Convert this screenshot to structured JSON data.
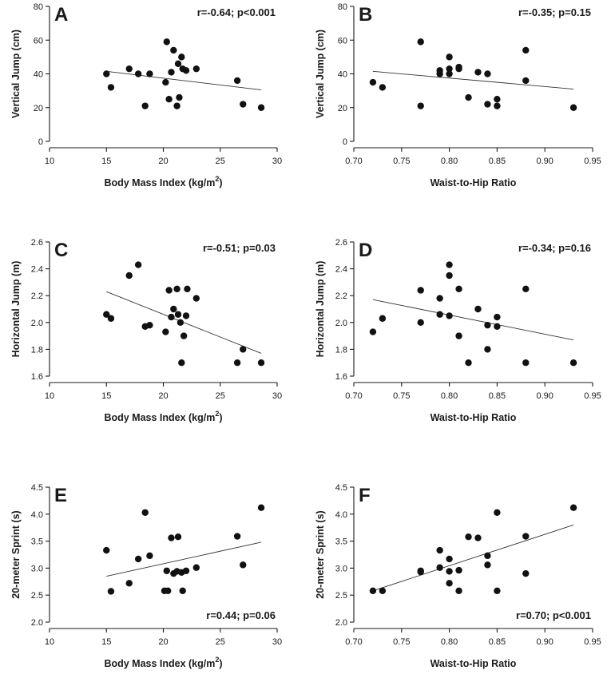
{
  "chart_data": [
    {
      "type": "scatter",
      "letter": "A",
      "stat": "r=-0.64;  p<0.001",
      "xlabel": "Body Mass Index (kg/m",
      "xlabel_sup": "2",
      "xlabel_end": ")",
      "ylabel": "Vertical Jump (cm)",
      "xlim": [
        10,
        30
      ],
      "ylim": [
        0,
        80
      ],
      "xticks": [
        "10",
        "15",
        "20",
        "25",
        "30"
      ],
      "yticks": [
        "0",
        "20",
        "40",
        "60",
        "80"
      ],
      "fit": [
        [
          15,
          41.5
        ],
        [
          28.6,
          30.5
        ]
      ],
      "points": [
        [
          15.0,
          40
        ],
        [
          15.4,
          32
        ],
        [
          17.0,
          43
        ],
        [
          17.8,
          40
        ],
        [
          18.4,
          21
        ],
        [
          18.8,
          40
        ],
        [
          20.2,
          35
        ],
        [
          20.3,
          59
        ],
        [
          20.5,
          25
        ],
        [
          20.7,
          41
        ],
        [
          20.9,
          54
        ],
        [
          21.2,
          21
        ],
        [
          21.3,
          46
        ],
        [
          21.4,
          26
        ],
        [
          21.6,
          50
        ],
        [
          21.7,
          43
        ],
        [
          22.0,
          42
        ],
        [
          22.9,
          43
        ],
        [
          26.5,
          36
        ],
        [
          27.0,
          22
        ],
        [
          28.6,
          20
        ]
      ]
    },
    {
      "type": "scatter",
      "letter": "B",
      "stat": "r=-0.35;  p=0.15",
      "xlabel": "Waist-to-Hip Ratio",
      "xlabel_sup": "",
      "xlabel_end": "",
      "ylabel": "Vertical Jump (cm)",
      "xlim": [
        0.7,
        0.95
      ],
      "ylim": [
        0,
        80
      ],
      "xticks": [
        "0.70",
        "0.75",
        "0.80",
        "0.85",
        "0.90",
        "0.95"
      ],
      "yticks": [
        "0",
        "20",
        "40",
        "60",
        "80"
      ],
      "fit": [
        [
          0.72,
          41.5
        ],
        [
          0.93,
          31
        ]
      ],
      "points": [
        [
          0.72,
          35
        ],
        [
          0.73,
          32
        ],
        [
          0.77,
          59
        ],
        [
          0.77,
          21
        ],
        [
          0.79,
          40
        ],
        [
          0.79,
          42
        ],
        [
          0.8,
          50
        ],
        [
          0.8,
          43
        ],
        [
          0.8,
          40
        ],
        [
          0.81,
          44
        ],
        [
          0.81,
          43
        ],
        [
          0.82,
          26
        ],
        [
          0.83,
          41
        ],
        [
          0.84,
          40
        ],
        [
          0.84,
          22
        ],
        [
          0.85,
          25
        ],
        [
          0.85,
          21
        ],
        [
          0.88,
          54
        ],
        [
          0.88,
          36
        ],
        [
          0.93,
          20
        ]
      ]
    },
    {
      "type": "scatter",
      "letter": "C",
      "stat": "r=-0.51;  p=0.03",
      "xlabel": "Body Mass Index (kg/m",
      "xlabel_sup": "2",
      "xlabel_end": ")",
      "ylabel": "Horizontal Jump (m)",
      "xlim": [
        10,
        30
      ],
      "ylim": [
        1.6,
        2.6
      ],
      "xticks": [
        "10",
        "15",
        "20",
        "25",
        "30"
      ],
      "yticks": [
        "1.6",
        "1.8",
        "2.0",
        "2.2",
        "2.4",
        "2.6"
      ],
      "fit": [
        [
          15,
          2.23
        ],
        [
          28.6,
          1.77
        ]
      ],
      "points": [
        [
          15.0,
          2.06
        ],
        [
          15.4,
          2.03
        ],
        [
          17.0,
          2.35
        ],
        [
          17.8,
          2.43
        ],
        [
          18.4,
          1.97
        ],
        [
          18.8,
          1.98
        ],
        [
          20.2,
          1.93
        ],
        [
          20.5,
          2.24
        ],
        [
          20.7,
          2.04
        ],
        [
          20.9,
          2.1
        ],
        [
          21.2,
          2.25
        ],
        [
          21.3,
          2.06
        ],
        [
          21.5,
          2.0
        ],
        [
          21.6,
          1.7
        ],
        [
          21.8,
          1.9
        ],
        [
          22.0,
          2.05
        ],
        [
          22.1,
          2.25
        ],
        [
          22.9,
          2.18
        ],
        [
          26.5,
          1.7
        ],
        [
          27.0,
          1.8
        ],
        [
          28.6,
          1.7
        ]
      ]
    },
    {
      "type": "scatter",
      "letter": "D",
      "stat": "r=-0.34;  p=0.16",
      "xlabel": "Waist-to-Hip Ratio",
      "xlabel_sup": "",
      "xlabel_end": "",
      "ylabel": "Horizontal Jump (m)",
      "xlim": [
        0.7,
        0.95
      ],
      "ylim": [
        1.6,
        2.6
      ],
      "xticks": [
        "0.70",
        "0.75",
        "0.80",
        "0.85",
        "0.90",
        "0.95"
      ],
      "yticks": [
        "1.6",
        "1.8",
        "2.0",
        "2.2",
        "2.4",
        "2.6"
      ],
      "fit": [
        [
          0.72,
          2.17
        ],
        [
          0.93,
          1.87
        ]
      ],
      "points": [
        [
          0.72,
          1.93
        ],
        [
          0.73,
          2.03
        ],
        [
          0.77,
          2.24
        ],
        [
          0.77,
          2.0
        ],
        [
          0.79,
          2.18
        ],
        [
          0.79,
          2.06
        ],
        [
          0.8,
          2.43
        ],
        [
          0.8,
          2.35
        ],
        [
          0.8,
          2.05
        ],
        [
          0.81,
          2.25
        ],
        [
          0.81,
          1.9
        ],
        [
          0.82,
          1.7
        ],
        [
          0.83,
          2.1
        ],
        [
          0.84,
          1.8
        ],
        [
          0.84,
          1.98
        ],
        [
          0.85,
          2.04
        ],
        [
          0.85,
          1.97
        ],
        [
          0.88,
          2.25
        ],
        [
          0.88,
          1.7
        ],
        [
          0.93,
          1.7
        ]
      ]
    },
    {
      "type": "scatter",
      "letter": "E",
      "stat": "r=0.44;  p=0.06",
      "xlabel": "Body Mass Index (kg/m",
      "xlabel_sup": "2",
      "xlabel_end": ")",
      "ylabel": "20-meter Sprint (s)",
      "xlim": [
        10,
        30
      ],
      "ylim": [
        2.0,
        4.5
      ],
      "xticks": [
        "10",
        "15",
        "20",
        "25",
        "30"
      ],
      "yticks": [
        "2.0",
        "2.5",
        "3.0",
        "3.5",
        "4.0",
        "4.5"
      ],
      "fit": [
        [
          15,
          2.85
        ],
        [
          28.6,
          3.48
        ]
      ],
      "points": [
        [
          15.0,
          3.33
        ],
        [
          15.4,
          2.57
        ],
        [
          17.0,
          2.72
        ],
        [
          17.8,
          3.17
        ],
        [
          18.4,
          4.03
        ],
        [
          18.8,
          3.23
        ],
        [
          20.1,
          2.58
        ],
        [
          20.3,
          2.95
        ],
        [
          20.4,
          2.58
        ],
        [
          20.7,
          3.56
        ],
        [
          20.9,
          2.9
        ],
        [
          21.2,
          2.94
        ],
        [
          21.3,
          3.58
        ],
        [
          21.6,
          2.92
        ],
        [
          21.7,
          2.58
        ],
        [
          22.0,
          2.95
        ],
        [
          22.9,
          3.01
        ],
        [
          26.5,
          3.59
        ],
        [
          27.0,
          3.06
        ],
        [
          28.6,
          4.12
        ]
      ]
    },
    {
      "type": "scatter",
      "letter": "F",
      "stat": "r=0.70;  p<0.001",
      "xlabel": "Waist-to-Hip Ratio",
      "xlabel_sup": "",
      "xlabel_end": "",
      "ylabel": "20-meter Sprint (s)",
      "xlim": [
        0.7,
        0.95
      ],
      "ylim": [
        2.0,
        4.5
      ],
      "xticks": [
        "0.70",
        "0.75",
        "0.80",
        "0.85",
        "0.90",
        "0.95"
      ],
      "yticks": [
        "2.0",
        "2.5",
        "3.0",
        "3.5",
        "4.0",
        "4.5"
      ],
      "fit": [
        [
          0.72,
          2.58
        ],
        [
          0.93,
          3.8
        ]
      ],
      "points": [
        [
          0.72,
          2.58
        ],
        [
          0.73,
          2.58
        ],
        [
          0.77,
          2.95
        ],
        [
          0.77,
          2.93
        ],
        [
          0.79,
          3.33
        ],
        [
          0.79,
          3.01
        ],
        [
          0.8,
          3.17
        ],
        [
          0.8,
          2.72
        ],
        [
          0.8,
          2.94
        ],
        [
          0.81,
          2.58
        ],
        [
          0.81,
          2.96
        ],
        [
          0.82,
          3.58
        ],
        [
          0.83,
          3.56
        ],
        [
          0.84,
          3.23
        ],
        [
          0.84,
          3.06
        ],
        [
          0.85,
          4.03
        ],
        [
          0.85,
          2.58
        ],
        [
          0.88,
          3.59
        ],
        [
          0.88,
          2.9
        ],
        [
          0.93,
          4.12
        ]
      ]
    }
  ]
}
